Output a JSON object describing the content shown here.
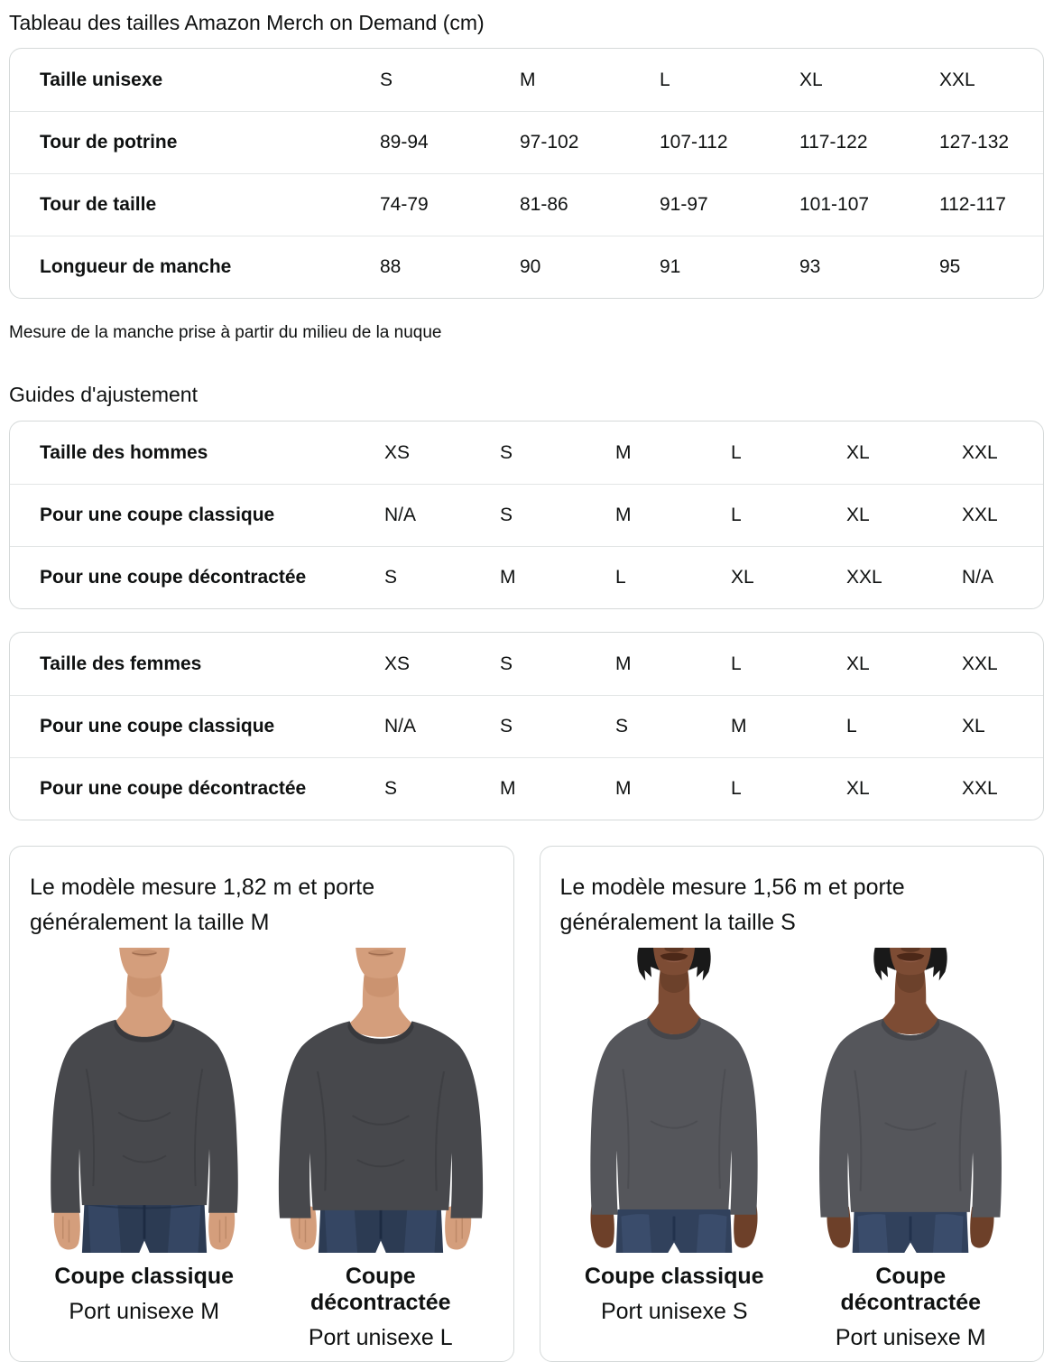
{
  "page": {
    "title": "Tableau des tailles Amazon Merch on Demand (cm)",
    "sleeve_note": "Mesure de la manche prise à partir du milieu de la nuque",
    "fit_guides_heading": "Guides d'ajustement"
  },
  "unisex_size_table": {
    "rows": [
      {
        "label": "Taille unisexe",
        "cells": [
          "S",
          "M",
          "L",
          "XL",
          "XXL"
        ]
      },
      {
        "label": "Tour de potrine",
        "cells": [
          "89-94",
          "97-102",
          "107-112",
          "117-122",
          "127-132"
        ]
      },
      {
        "label": "Tour de taille",
        "cells": [
          "74-79",
          "81-86",
          "91-97",
          "101-107",
          "112-117"
        ]
      },
      {
        "label": "Longueur de manche",
        "cells": [
          "88",
          "90",
          "91",
          "93",
          "95"
        ]
      }
    ]
  },
  "men_fit_table": {
    "rows": [
      {
        "label": "Taille des hommes",
        "cells": [
          "XS",
          "S",
          "M",
          "L",
          "XL",
          "XXL"
        ]
      },
      {
        "label": "Pour une coupe classique",
        "cells": [
          "N/A",
          "S",
          "M",
          "L",
          "XL",
          "XXL"
        ]
      },
      {
        "label": "Pour une coupe décontractée",
        "cells": [
          "S",
          "M",
          "L",
          "XL",
          "XXL",
          "N/A"
        ]
      }
    ]
  },
  "women_fit_table": {
    "rows": [
      {
        "label": "Taille des femmes",
        "cells": [
          "XS",
          "S",
          "M",
          "L",
          "XL",
          "XXL"
        ]
      },
      {
        "label": "Pour une coupe classique",
        "cells": [
          "N/A",
          "S",
          "S",
          "M",
          "L",
          "XL"
        ]
      },
      {
        "label": "Pour une coupe décontractée",
        "cells": [
          "S",
          "M",
          "M",
          "L",
          "XL",
          "XXL"
        ]
      }
    ]
  },
  "model_cards": [
    {
      "description": "Le modèle mesure 1,82 m et porte généralement la taille M",
      "figures": [
        {
          "fit_label": "Coupe classique",
          "size_label": "Port unisexe M"
        },
        {
          "fit_label": "Coupe décontractée",
          "size_label": "Port unisexe L"
        }
      ]
    },
    {
      "description": "Le modèle mesure 1,56 m et porte généralement la taille S",
      "figures": [
        {
          "fit_label": "Coupe classique",
          "size_label": "Port unisexe S"
        },
        {
          "fit_label": "Coupe décontractée",
          "size_label": "Port unisexe M"
        }
      ]
    }
  ],
  "colors": {
    "text": "#0f1111",
    "card_border": "#d5d9d9",
    "row_divider": "#e3e6e6",
    "shirt_men": "#47484c",
    "shirt_women": "#55565b",
    "jeans": "#2c3b53",
    "skin_men": "#d49e7c",
    "skin_women": "#7d4c34"
  }
}
